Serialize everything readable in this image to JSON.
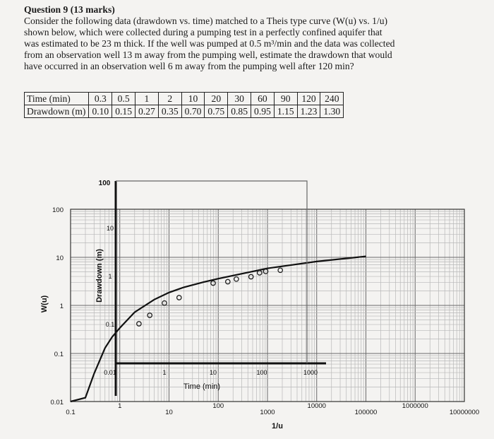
{
  "question": {
    "title": "Question 9 (13 marks)",
    "lines": [
      "Consider the following data (drawdown vs. time) matched to a Theis type curve (W(u) vs. 1/u)",
      "shown below, which were collected during a pumping test in a perfectly confined aquifer that",
      "was estimated to be 23 m thick.  If the well was pumped at 0.5 m³/min and the data was collected",
      "from an observation well 13 m away from the pumping well, estimate the drawdown that would",
      "have occurred in an observation well 6 m away from the pumping well after 120 min?"
    ]
  },
  "table": {
    "row1_label": "Time (min)",
    "row2_label": "Drawdown (m)",
    "time": [
      "0.3",
      "0.5",
      "1",
      "2",
      "10",
      "20",
      "30",
      "60",
      "90",
      "120",
      "240"
    ],
    "drawdown": [
      "0.10",
      "0.15",
      "0.27",
      "0.35",
      "0.70",
      "0.75",
      "0.85",
      "0.95",
      "1.15",
      "1.23",
      "1.30"
    ]
  },
  "chart_data": {
    "type": "line",
    "title": "",
    "xlabel": "1/u",
    "ylabel": "W(u)",
    "x_scale": "log",
    "y_scale": "log",
    "xlim": [
      0.1,
      10000000
    ],
    "ylim": [
      0.01,
      100
    ],
    "x_tick_labels": [
      "0.1",
      "1",
      "10",
      "100",
      "1000",
      "10000",
      "100000",
      "1000000",
      "10000000"
    ],
    "y_tick_labels": [
      "100",
      "10",
      "1",
      "0.1",
      "0.01"
    ],
    "series": [
      {
        "x": [
          0.1,
          0.2,
          0.3,
          0.5,
          0.7,
          1,
          2,
          5,
          10,
          20,
          50,
          100,
          1000,
          10000,
          100000
        ],
        "y": [
          0.0,
          0.012,
          0.038,
          0.13,
          0.22,
          0.34,
          0.72,
          1.32,
          1.85,
          2.38,
          3.05,
          3.6,
          5.9,
          8.2,
          10.5
        ]
      }
    ],
    "overlay": {
      "xlabel": "Time (min)",
      "ylabel": "Drawdown (m)",
      "top_label": "100",
      "x_tick_labels": [
        "1",
        "10",
        "100",
        "1000"
      ],
      "y_tick_labels": [
        "10",
        "1",
        "0.1",
        "0.01"
      ],
      "points": {
        "time": [
          0.3,
          0.5,
          1,
          2,
          10,
          20,
          30,
          60,
          90,
          120,
          240
        ],
        "drawdown": [
          0.1,
          0.15,
          0.27,
          0.35,
          0.7,
          0.75,
          0.85,
          0.95,
          1.15,
          1.23,
          1.3
        ]
      }
    }
  }
}
